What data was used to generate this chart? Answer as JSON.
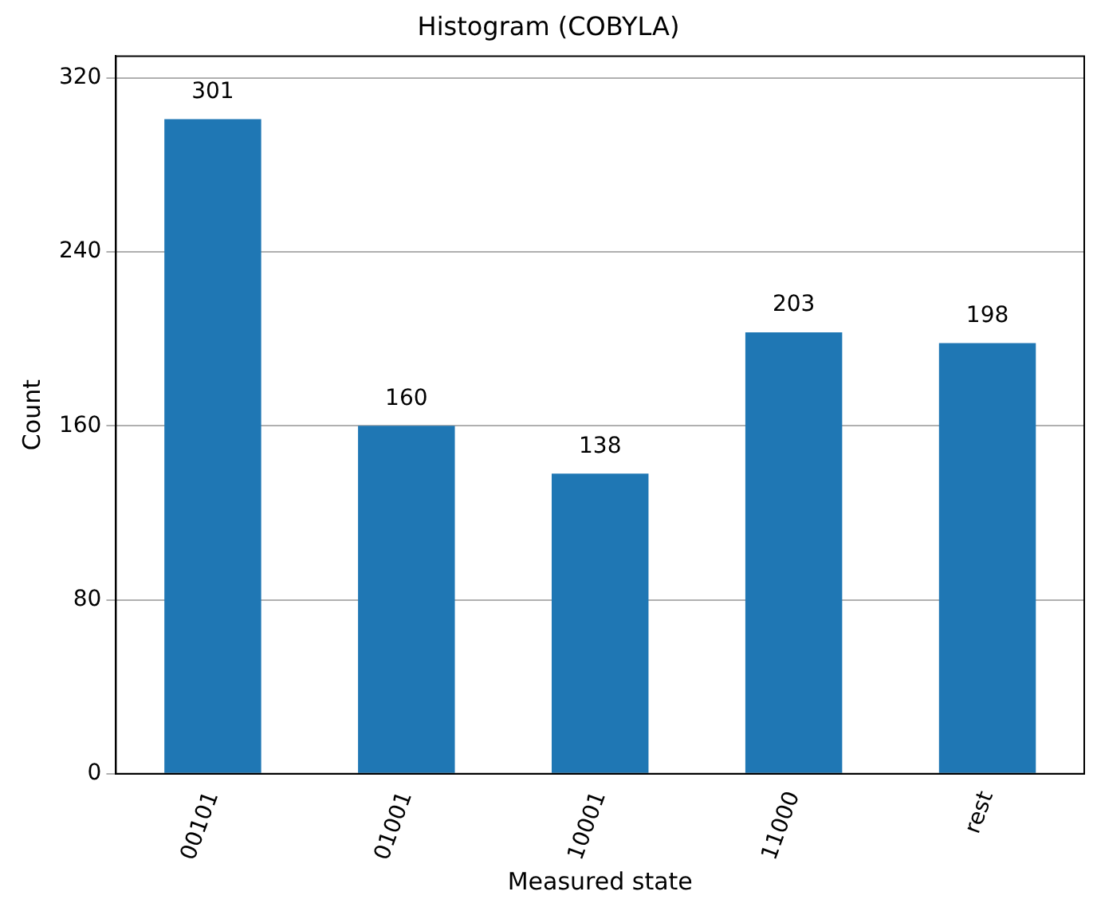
{
  "chart_data": {
    "type": "bar",
    "title": "Histogram (COBYLA)",
    "xlabel": "Measured state",
    "ylabel": "Count",
    "categories": [
      "00101",
      "01001",
      "10001",
      "11000",
      "rest"
    ],
    "values": [
      301,
      160,
      138,
      203,
      198
    ],
    "color": "#1f77b4",
    "ylim": [
      0,
      330
    ],
    "yticks": [
      0,
      80,
      160,
      240,
      320
    ],
    "grid": "y",
    "data_labels": true
  }
}
